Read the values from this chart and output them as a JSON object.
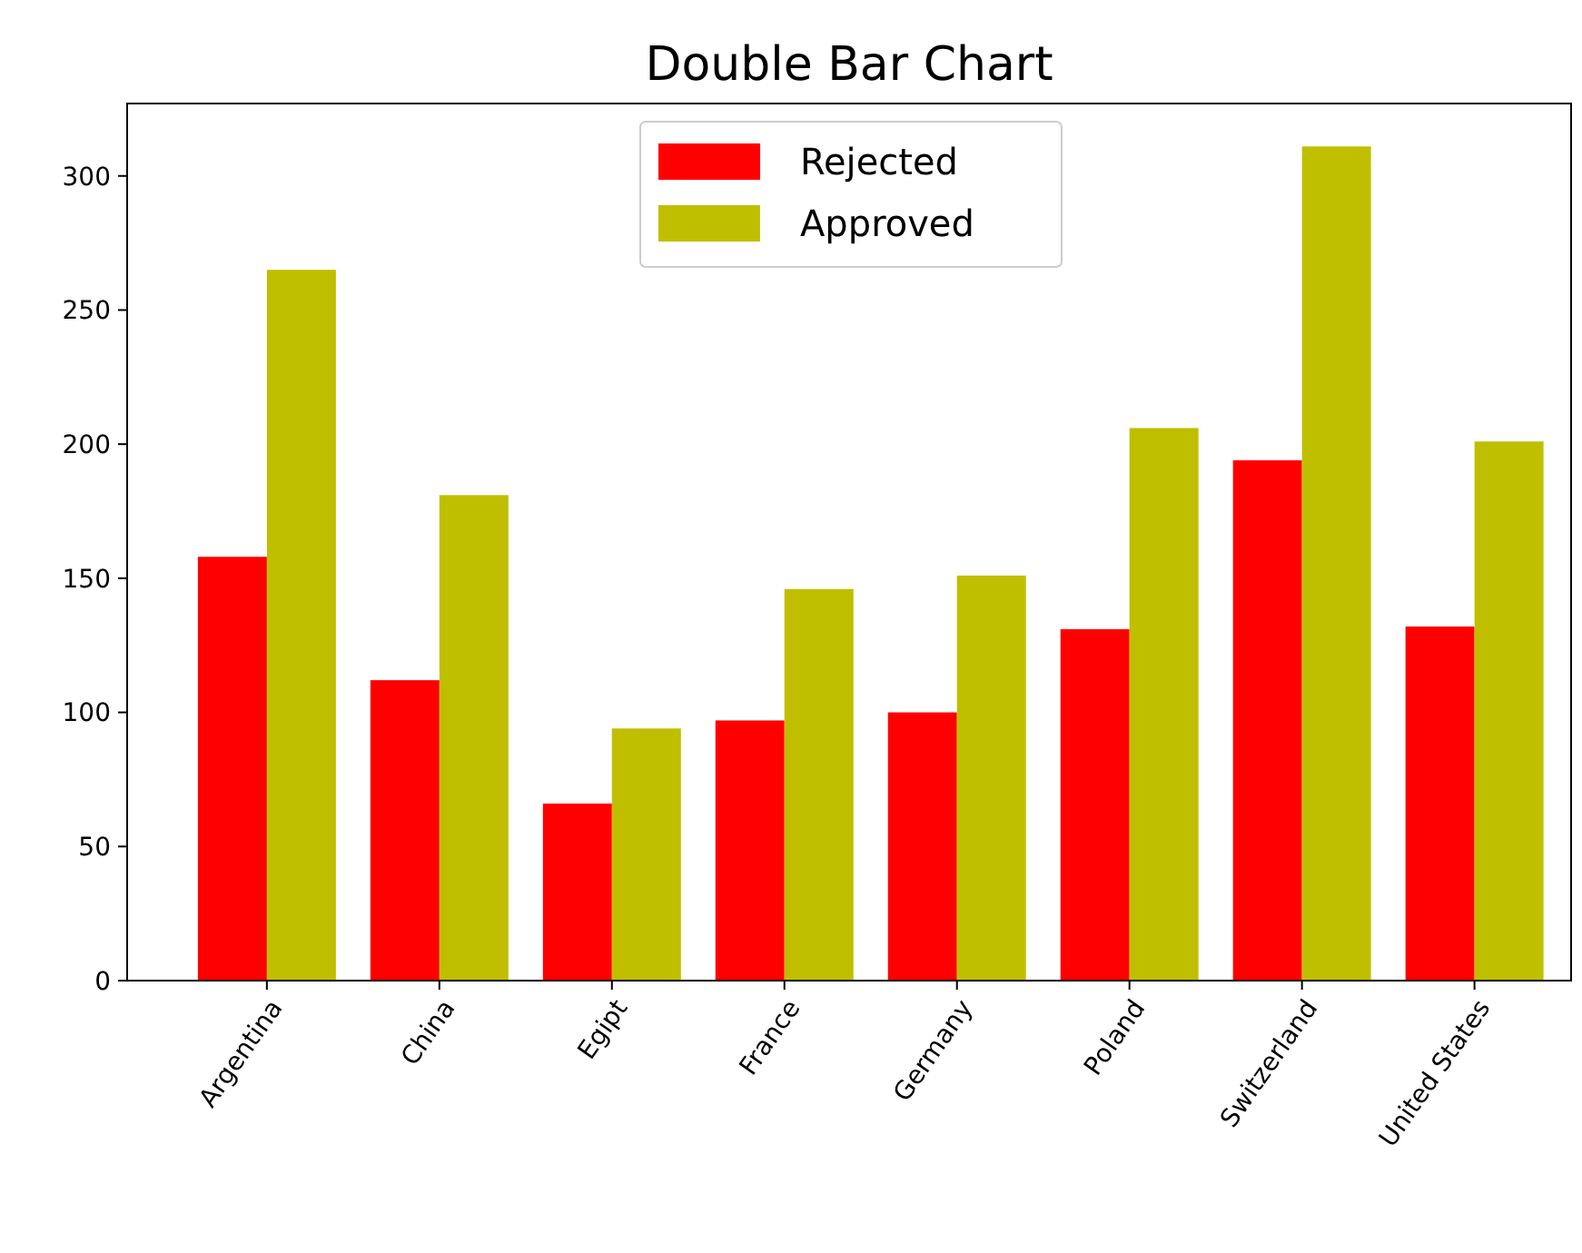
{
  "chart_data": {
    "type": "bar",
    "title": "Double Bar Chart",
    "categories": [
      "Argentina",
      "China",
      "Egipt",
      "France",
      "Germany",
      "Poland",
      "Switzerland",
      "United States"
    ],
    "series": [
      {
        "name": "Rejected",
        "color": "#ff0000",
        "values": [
          158,
          112,
          66,
          97,
          100,
          131,
          194,
          132
        ]
      },
      {
        "name": "Approved",
        "color": "#bfbf00",
        "values": [
          265,
          181,
          94,
          146,
          151,
          206,
          311,
          201
        ]
      }
    ],
    "ylim": [
      0,
      327
    ],
    "yticks": [
      0,
      50,
      100,
      150,
      200,
      250,
      300
    ],
    "grid": false,
    "legend": "top"
  }
}
